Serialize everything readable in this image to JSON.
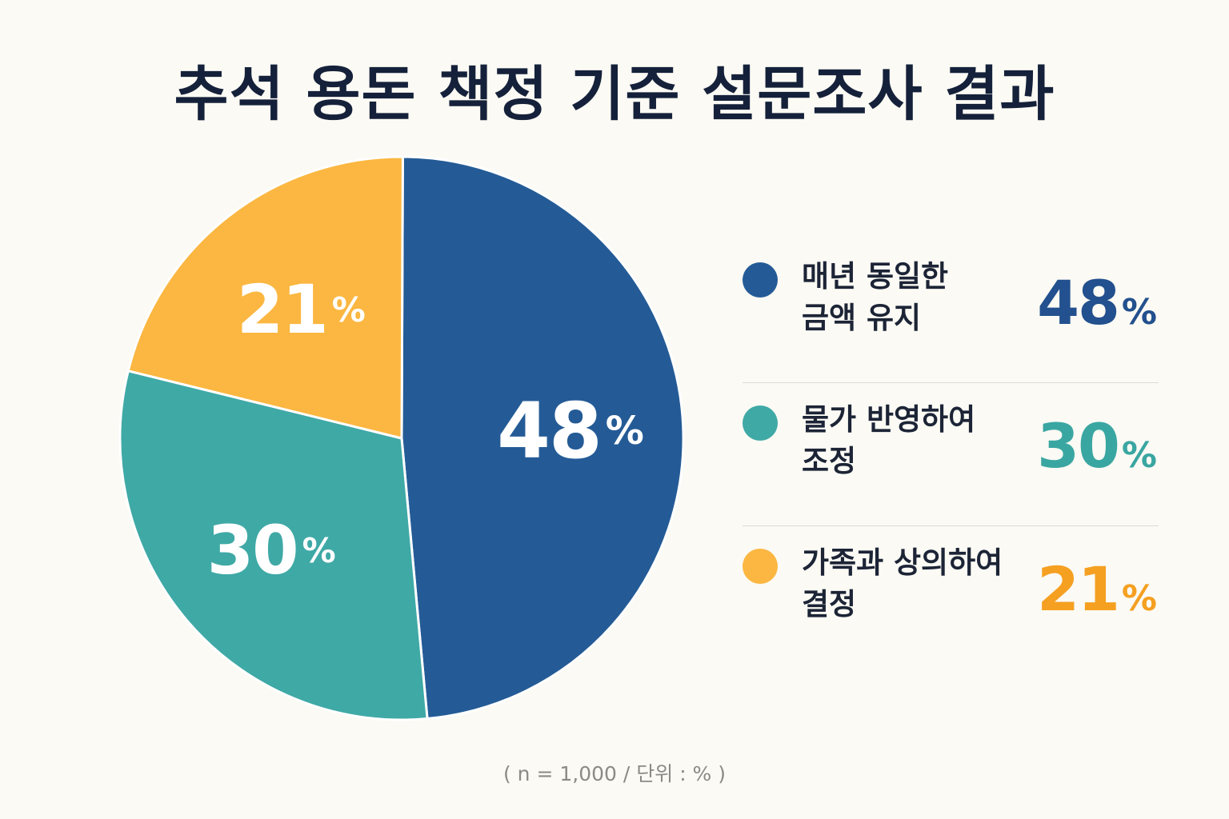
{
  "chart_data": {
    "type": "pie",
    "title": "추석 용돈 책정 기준 설문조사 결과",
    "unit": "%",
    "note": "( n = 1,000 / 단위 : % )",
    "slices": [
      {
        "label": "매년 동일한 금액 유지",
        "label_lines": [
          "매년 동일한",
          "금액 유지"
        ],
        "value": 48,
        "color": "#245b96",
        "value_color": "#23508e"
      },
      {
        "label": "물가 반영하여 조정",
        "label_lines": [
          "물가 반영하여",
          "조정"
        ],
        "value": 30,
        "color": "#3fa9a6",
        "value_color": "#3aa6a2"
      },
      {
        "label": "가족과 상의하여 결정",
        "label_lines": [
          "가족과 상의하여",
          "결정"
        ],
        "value": 21,
        "color": "#fbb741",
        "value_color": "#f5a021"
      }
    ]
  }
}
